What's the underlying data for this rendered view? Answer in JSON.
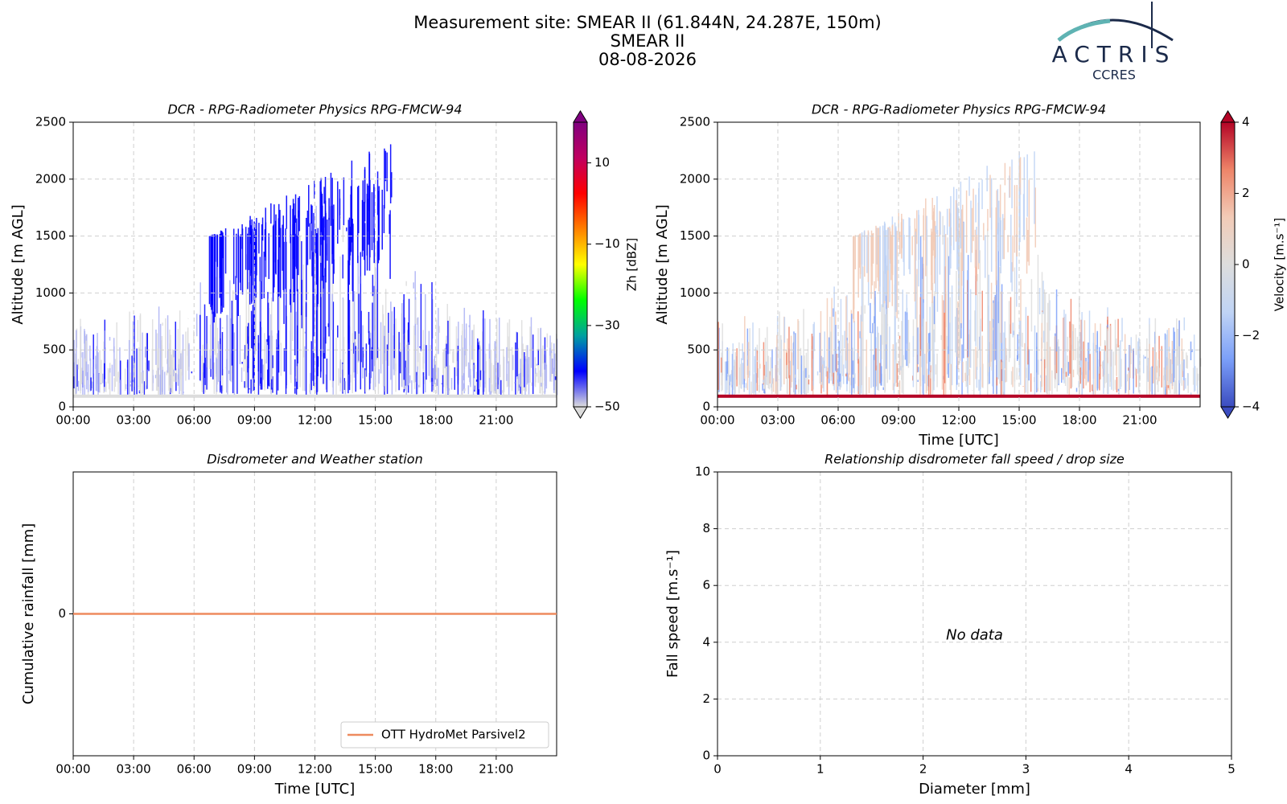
{
  "header": {
    "title_lines": [
      "Measurement site: SMEAR II (61.844N, 24.287E, 150m)",
      "SMEAR II",
      "08-08-2026"
    ],
    "logo_name": "ACTRIS",
    "logo_sub": "CCRES"
  },
  "chart_data": [
    {
      "type": "heatmap",
      "title": "DCR - RPG-Radiometer Physics RPG-FMCW-94",
      "y_label": "Altitude [m AGL]",
      "xlim": [
        0,
        24
      ],
      "xticks": [
        {
          "value": 0,
          "label": "00:00"
        },
        {
          "value": 3,
          "label": "03:00"
        },
        {
          "value": 6,
          "label": "06:00"
        },
        {
          "value": 9,
          "label": "09:00"
        },
        {
          "value": 12,
          "label": "12:00"
        },
        {
          "value": 15,
          "label": "15:00"
        },
        {
          "value": 18,
          "label": "18:00"
        },
        {
          "value": 21,
          "label": "21:00"
        }
      ],
      "ylim": [
        0,
        2500
      ],
      "yticks": [
        0,
        500,
        1000,
        1500,
        2000,
        2500
      ],
      "grid": true,
      "colorbar": {
        "label": "Zh [dBZ]",
        "lim": [
          -50,
          20
        ],
        "extend": "both",
        "ticks": [
          {
            "value": -50,
            "label": "−50"
          },
          {
            "value": -30,
            "label": "−30"
          },
          {
            "value": -10,
            "label": "−10"
          },
          {
            "value": 10,
            "label": "10"
          }
        ],
        "colormap": [
          "#dcdcdc",
          "#0000ff",
          "#00a0a0",
          "#00ff00",
          "#ffff00",
          "#ff8000",
          "#ff0000",
          "#c00060",
          "#800080"
        ]
      }
    },
    {
      "type": "heatmap",
      "title": "DCR - RPG-Radiometer Physics RPG-FMCW-94",
      "y_label": "Altitude [m AGL]",
      "x_label": "Time [UTC]",
      "xlim": [
        0,
        24
      ],
      "xticks": [
        {
          "value": 0,
          "label": "00:00"
        },
        {
          "value": 3,
          "label": "03:00"
        },
        {
          "value": 6,
          "label": "06:00"
        },
        {
          "value": 9,
          "label": "09:00"
        },
        {
          "value": 12,
          "label": "12:00"
        },
        {
          "value": 15,
          "label": "15:00"
        },
        {
          "value": 18,
          "label": "18:00"
        },
        {
          "value": 21,
          "label": "21:00"
        }
      ],
      "ylim": [
        0,
        2500
      ],
      "yticks": [
        0,
        500,
        1000,
        1500,
        2000,
        2500
      ],
      "grid": true,
      "colorbar": {
        "label": "Velocity [m.s⁻¹]",
        "lim": [
          -4,
          4
        ],
        "extend": "both",
        "ticks": [
          {
            "value": -4,
            "label": "−4"
          },
          {
            "value": -2,
            "label": "−2"
          },
          0,
          2,
          4
        ],
        "colormap": [
          "#3b4cc0",
          "#7b9ff9",
          "#c0d4f5",
          "#dddddd",
          "#f2cbb7",
          "#ee8468",
          "#b40426"
        ]
      }
    },
    {
      "type": "line",
      "title": "Disdrometer and Weather station",
      "y_label": "Cumulative rainfall [mm]",
      "x_label": "Time [UTC]",
      "xlim": [
        0,
        24
      ],
      "xticks": [
        {
          "value": 0,
          "label": "00:00"
        },
        {
          "value": 3,
          "label": "03:00"
        },
        {
          "value": 6,
          "label": "06:00"
        },
        {
          "value": 9,
          "label": "09:00"
        },
        {
          "value": 12,
          "label": "12:00"
        },
        {
          "value": 15,
          "label": "15:00"
        },
        {
          "value": 18,
          "label": "18:00"
        },
        {
          "value": 21,
          "label": "21:00"
        }
      ],
      "ylim": [
        -1,
        1
      ],
      "yticks": [
        0
      ],
      "grid": true,
      "legend": "lower right",
      "series": [
        {
          "name": "OTT HydroMet Parsivel2",
          "color": "#ee8a5e",
          "x": [
            0,
            24
          ],
          "values": [
            0,
            0
          ]
        }
      ]
    },
    {
      "type": "scatter",
      "title": "Relationship disdrometer fall speed / drop size",
      "x_label": "Diameter [mm]",
      "y_label": "Fall speed [m.s⁻¹]",
      "xlim": [
        0,
        5
      ],
      "xticks": [
        0,
        1,
        2,
        3,
        4,
        5
      ],
      "ylim": [
        0,
        10
      ],
      "yticks": [
        0,
        2,
        4,
        6,
        8,
        10
      ],
      "grid": true,
      "annotation": "No data"
    }
  ]
}
